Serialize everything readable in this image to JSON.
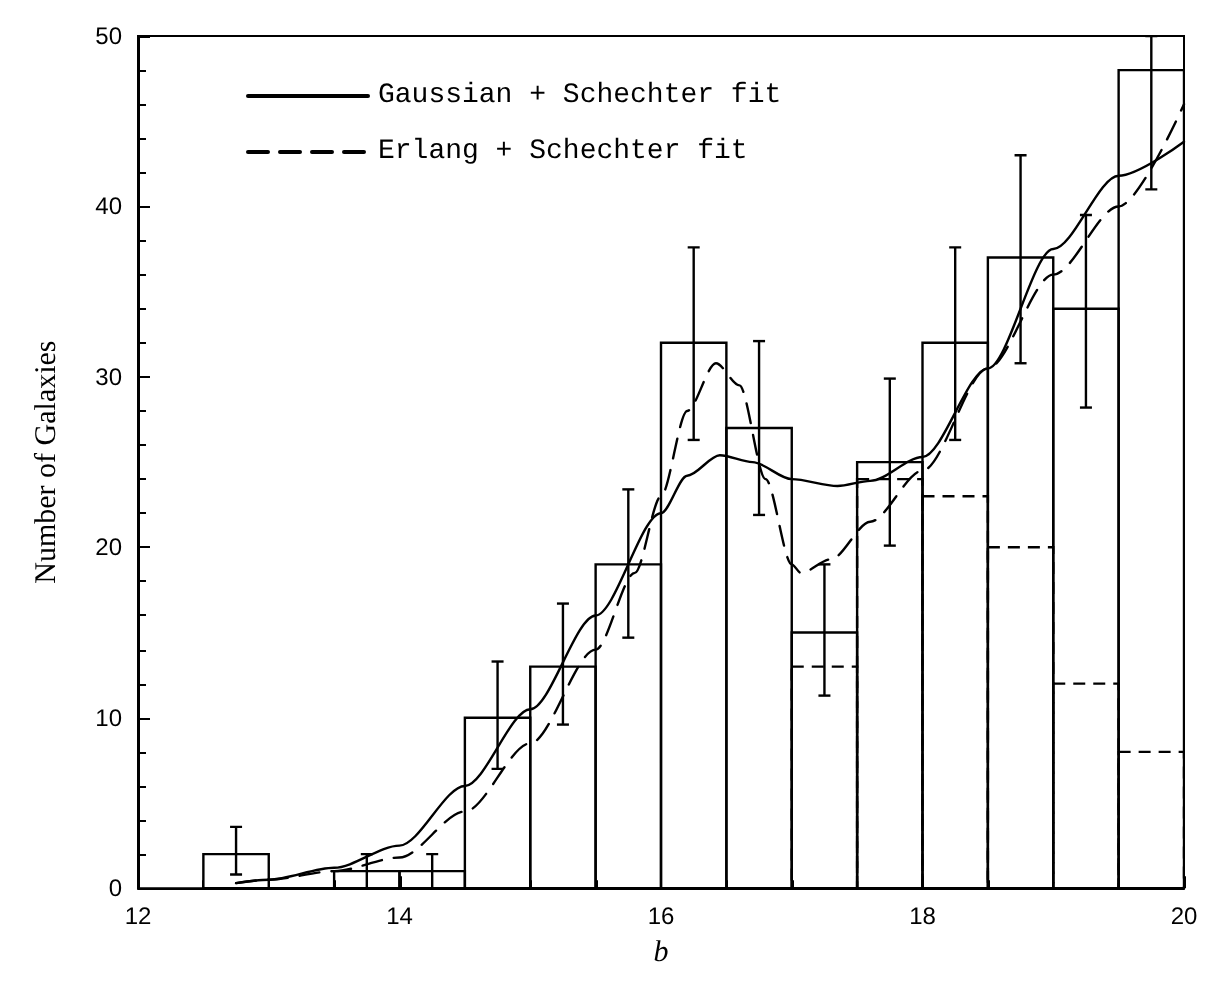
{
  "chart_data": {
    "type": "histogram",
    "xlabel": "b",
    "ylabel": "Number of Galaxies",
    "xlim": [
      12,
      20
    ],
    "ylim": [
      0,
      50
    ],
    "xticks": [
      12,
      14,
      16,
      18,
      20
    ],
    "yticks": [
      0,
      10,
      20,
      30,
      40,
      50
    ],
    "grid": false,
    "legend": "top left",
    "series": [
      {
        "color": "#000000",
        "line_style": "solid",
        "bins": [
          12.5,
          13,
          13.5,
          14,
          14.5,
          15,
          15.5,
          16,
          16.5,
          17,
          17.5,
          18,
          18.5,
          19,
          19.5,
          20
        ],
        "values": [
          2,
          0,
          1,
          1,
          10,
          13,
          19,
          32,
          27,
          15,
          25,
          32,
          37,
          34,
          48
        ],
        "errors": [
          [
            0.8,
            3.6
          ],
          null,
          [
            0,
            2
          ],
          [
            0,
            2
          ],
          [
            7,
            13.3
          ],
          [
            9.6,
            16.7
          ],
          [
            14.7,
            23.4
          ],
          [
            26.3,
            37.6
          ],
          [
            21.9,
            32.1
          ],
          [
            11.3,
            19
          ],
          [
            20.1,
            29.9
          ],
          [
            26.3,
            37.6
          ],
          [
            30.8,
            43
          ],
          [
            28.2,
            39.5
          ],
          [
            41,
            50
          ]
        ]
      },
      {
        "color": "#000000",
        "line_style": "dashed",
        "bins": [
          17,
          17.5,
          18,
          18.5,
          19,
          19.5,
          20
        ],
        "values": [
          13,
          24,
          23,
          20,
          12,
          8
        ]
      },
      {
        "type": "line",
        "name": "Gaussian + Schechter fit",
        "color": "#000000",
        "line_style": "solid",
        "x": [
          12.75,
          13,
          13.5,
          14,
          14.5,
          15,
          15.5,
          16,
          16.2,
          16.45,
          16.7,
          17,
          17.35,
          17.6,
          18,
          18.5,
          19,
          19.5,
          20
        ],
        "values": [
          0.3,
          0.5,
          1.2,
          2.5,
          6,
          10.5,
          16,
          22,
          24.2,
          25.4,
          25,
          24,
          23.6,
          23.9,
          25.3,
          30.5,
          37.5,
          41.8,
          43.8
        ]
      },
      {
        "type": "line",
        "name": "Erlang + Schechter fit",
        "color": "#000000",
        "line_style": "dashed",
        "x": [
          12.75,
          13,
          13.5,
          14,
          14.5,
          15,
          15.5,
          15.8,
          16,
          16.2,
          16.42,
          16.6,
          16.8,
          17,
          17.07,
          17.3,
          17.6,
          18,
          18.5,
          19,
          19.5,
          20
        ],
        "values": [
          0.3,
          0.5,
          1,
          1.8,
          4.5,
          8.5,
          14,
          18.5,
          23,
          28,
          30.8,
          29.5,
          24,
          19,
          18.5,
          19.3,
          21.5,
          24.5,
          30.5,
          36,
          40,
          46
        ]
      }
    ]
  }
}
